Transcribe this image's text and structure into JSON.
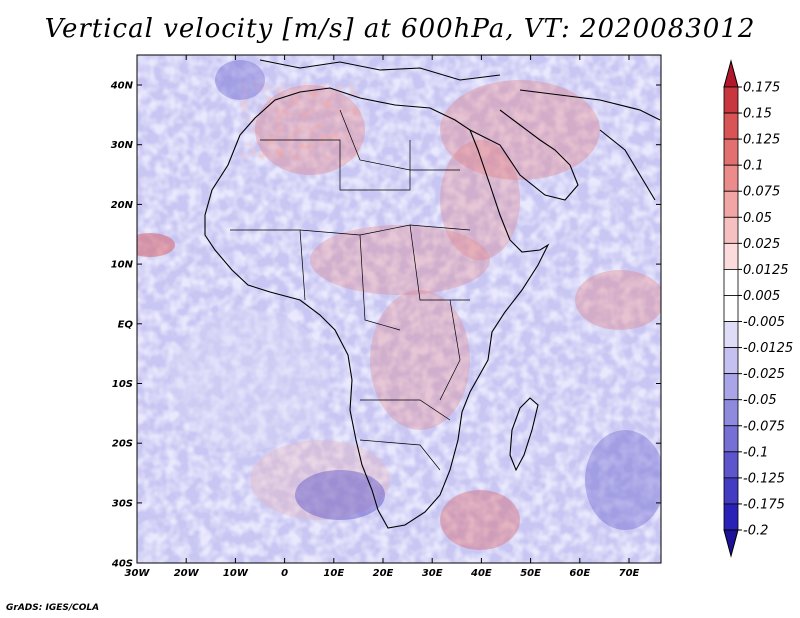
{
  "title": "Vertical velocity [m/s] at 600hPa, VT: 2020083012",
  "credit": "GrADS: IGES/COLA",
  "lat_labels": [
    "40N",
    "30N",
    "20N",
    "10N",
    "EQ",
    "10S",
    "20S",
    "30S",
    "40S"
  ],
  "lon_labels": [
    "30W",
    "20W",
    "10W",
    "0",
    "10E",
    "20E",
    "30E",
    "40E",
    "50E",
    "60E",
    "70E"
  ],
  "colorbar": {
    "labels": [
      "0.175",
      "0.15",
      "0.125",
      "0.1",
      "0.075",
      "0.05",
      "0.025",
      "0.0125",
      "0.005",
      "-0.005",
      "-0.0125",
      "-0.025",
      "-0.05",
      "-0.075",
      "-0.1",
      "-0.125",
      "-0.175",
      "-0.2"
    ],
    "colors": [
      "#b2182b",
      "#c9373e",
      "#d95555",
      "#e27070",
      "#eb8b8b",
      "#f2a5a5",
      "#f7c0c0",
      "#fbdbdb",
      "#ffffff",
      "#ffffff",
      "#dedcf7",
      "#c4c0ef",
      "#aaa5e7",
      "#908ade",
      "#766fd5",
      "#5c55cc",
      "#433bc2",
      "#2a21b7",
      "#1b1299"
    ]
  }
}
